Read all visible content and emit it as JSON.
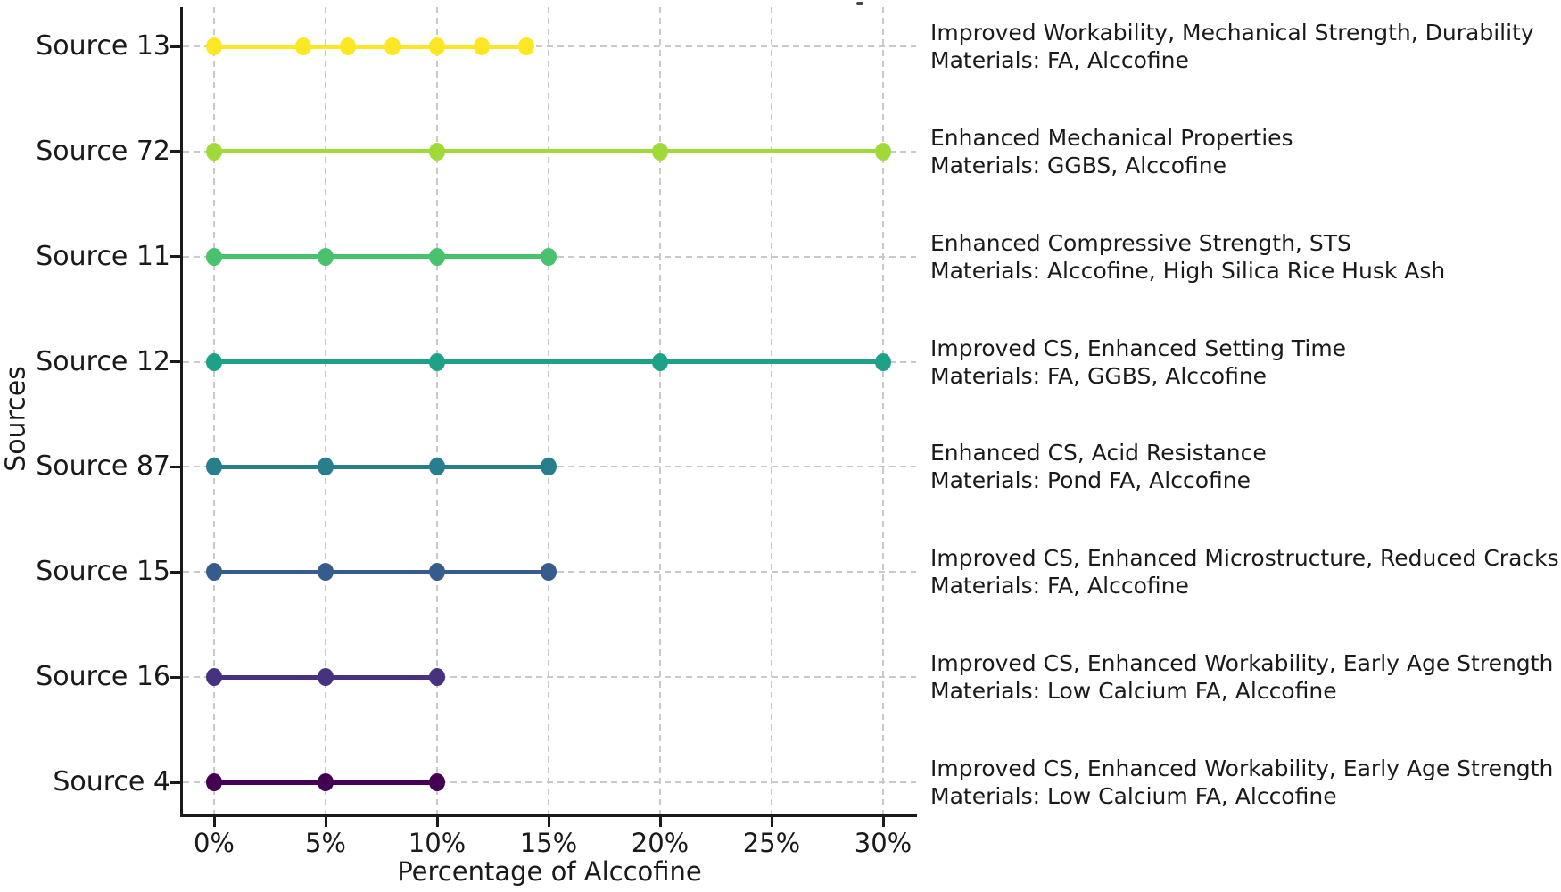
{
  "chart_data": {
    "type": "scatter",
    "subtype": "horizontal-dot-line-rows",
    "title": "",
    "xlabel": "Percentage of Alccofine",
    "ylabel": "Sources",
    "x_tick_labels": [
      "0%",
      "5%",
      "10%",
      "15%",
      "20%",
      "25%",
      "30%"
    ],
    "x_tick_values": [
      0,
      5,
      10,
      15,
      20,
      25,
      30
    ],
    "xlim": [
      -1.4,
      31.5
    ],
    "grid": "dashed-both-axes",
    "colormap": "viridis",
    "legend": "none",
    "rows": [
      {
        "source": "Source 13",
        "x_percent": [
          0,
          4,
          6,
          8,
          10,
          12,
          14
        ],
        "color": "#fde725",
        "benefit": "Improved Workability, Mechanical Strength, Durability",
        "materials": "Materials: FA, Alccofine"
      },
      {
        "source": "Source 72",
        "x_percent": [
          0,
          10,
          20,
          30
        ],
        "color": "#a0da39",
        "benefit": "Enhanced Mechanical Properties",
        "materials": "Materials: GGBS, Alccofine"
      },
      {
        "source": "Source 11",
        "x_percent": [
          0,
          5,
          10,
          15
        ],
        "color": "#4ac16d",
        "benefit": "Enhanced Compressive Strength, STS",
        "materials": "Materials: Alccofine, High Silica Rice Husk Ash"
      },
      {
        "source": "Source 12",
        "x_percent": [
          0,
          10,
          20,
          30
        ],
        "color": "#1fa187",
        "benefit": "Improved CS, Enhanced Setting Time",
        "materials": "Materials: FA, GGBS, Alccofine"
      },
      {
        "source": "Source 87",
        "x_percent": [
          0,
          5,
          10,
          15
        ],
        "color": "#277f8e",
        "benefit": "Enhanced CS, Acid Resistance",
        "materials": "Materials: Pond FA, Alccofine"
      },
      {
        "source": "Source 15",
        "x_percent": [
          0,
          5,
          10,
          15
        ],
        "color": "#365c8d",
        "benefit": "Improved CS, Enhanced Microstructure, Reduced Cracks",
        "materials": "Materials: FA, Alccofine"
      },
      {
        "source": "Source 16",
        "x_percent": [
          0,
          5,
          10
        ],
        "color": "#46327e",
        "benefit": "Improved CS, Enhanced Workability, Early Age Strength",
        "materials": "Materials: Low Calcium FA, Alccofine"
      },
      {
        "source": "Source 4",
        "x_percent": [
          0,
          5,
          10
        ],
        "color": "#440154",
        "benefit": "Improved CS, Enhanced Workability, Early Age Strength",
        "materials": "Materials: Low Calcium FA, Alccofine"
      }
    ]
  }
}
